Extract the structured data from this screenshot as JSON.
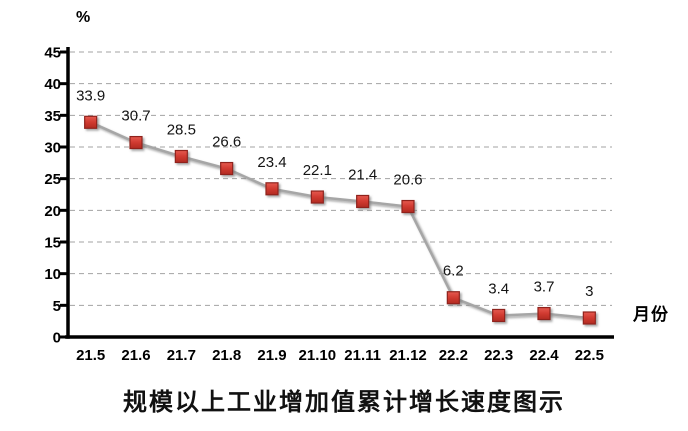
{
  "page": {
    "background": "#ffffff"
  },
  "chart_data": {
    "type": "line",
    "title": "规模以上工业增加值累计增长速度图示",
    "y_axis_unit_label": "%",
    "x_axis_unit_label": "月份",
    "categories": [
      "21.5",
      "21.6",
      "21.7",
      "21.8",
      "21.9",
      "21.10",
      "21.11",
      "21.12",
      "22.2",
      "22.3",
      "22.4",
      "22.5"
    ],
    "values": [
      33.9,
      30.7,
      28.5,
      26.6,
      23.4,
      22.1,
      21.4,
      20.6,
      6.2,
      3.4,
      3.7,
      3
    ],
    "data_labels": [
      "33.9",
      "30.7",
      "28.5",
      "26.6",
      "23.4",
      "22.1",
      "21.4",
      "20.6",
      "6.2",
      "3.4",
      "3.7",
      "3"
    ],
    "ylim": [
      0,
      45
    ],
    "y_tick_step": 5,
    "y_ticks": [
      0,
      5,
      10,
      15,
      20,
      25,
      30,
      35,
      40,
      45
    ],
    "grid": "horizontal-dashed",
    "legend": "none",
    "marker_shape": "square",
    "colors": {
      "marker_fill": "#d03a30",
      "marker_fill_light": "#e65a50",
      "marker_fill_dark": "#b12a22",
      "marker_border": "#8f231d",
      "line": "#a6a6a6",
      "gridline": "#a3a3a3",
      "axis": "#000000",
      "text": "#000000"
    }
  }
}
